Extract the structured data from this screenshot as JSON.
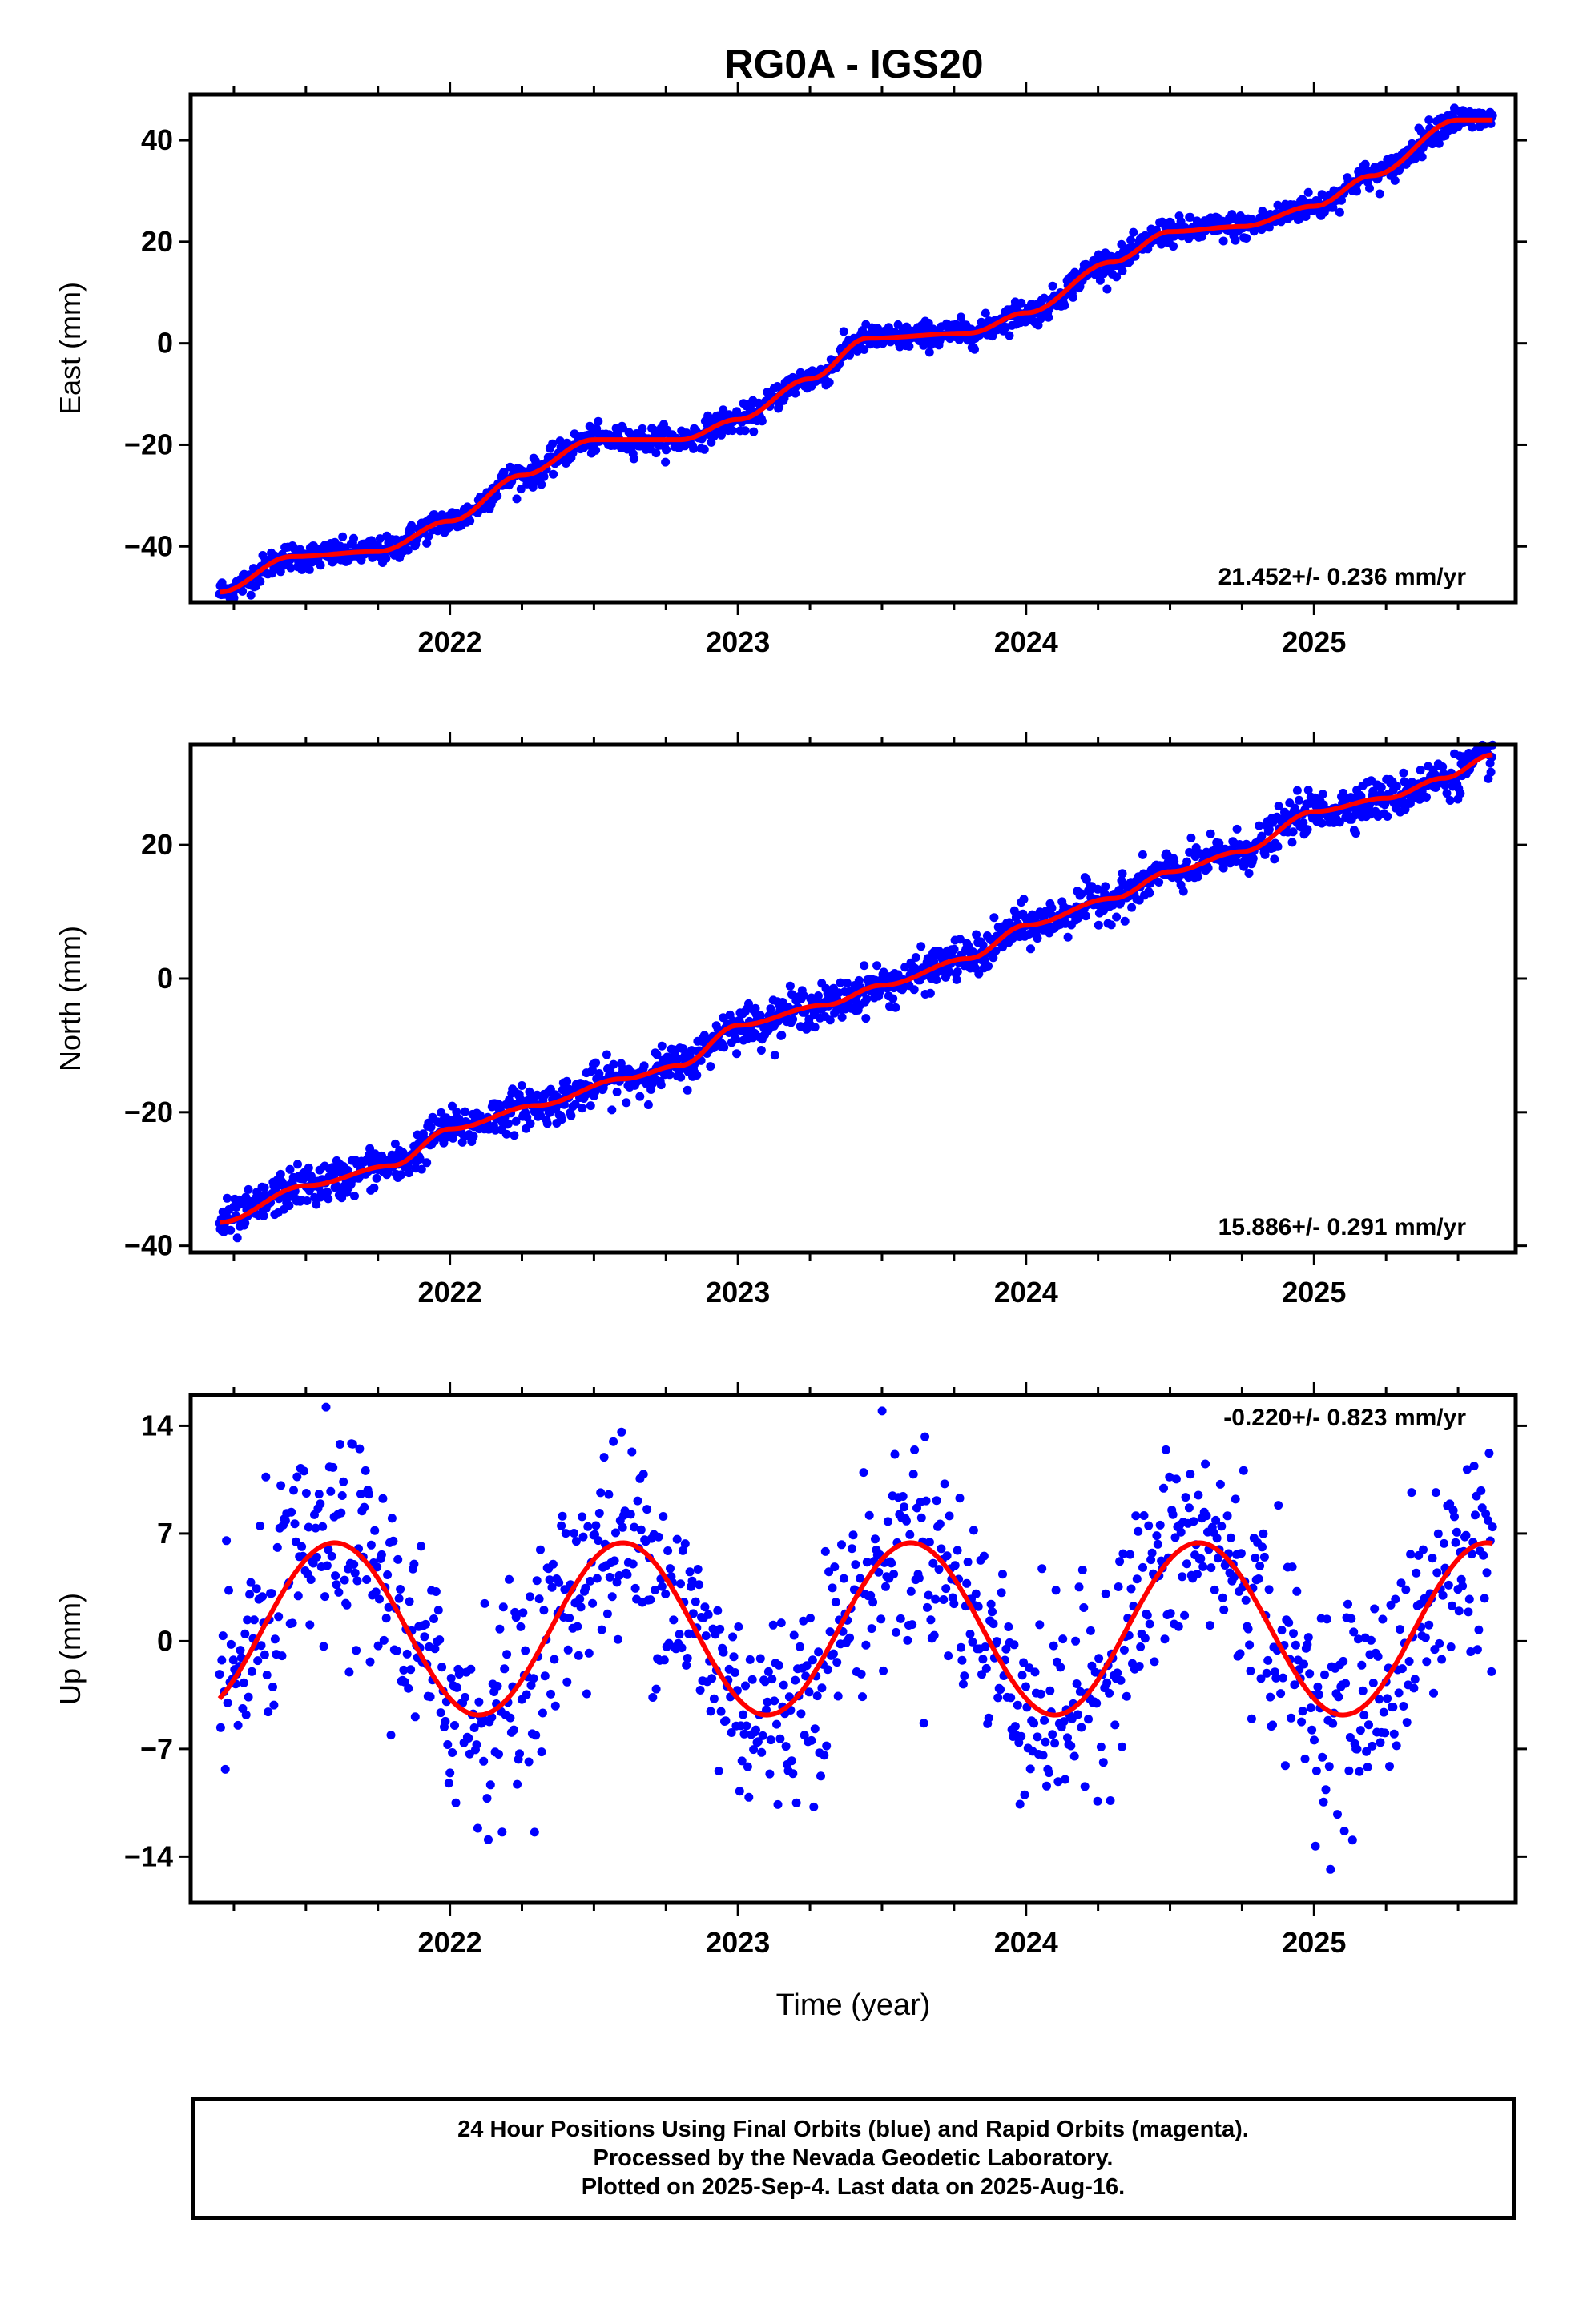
{
  "colors": {
    "points": "#0000ff",
    "fit": "#ff0000",
    "axes": "#000000"
  },
  "footer": {
    "line1": "24 Hour Positions Using Final Orbits (blue) and Rapid Orbits (magenta).",
    "line2": "Processed by the Nevada Geodetic Laboratory.",
    "line3": "Plotted on 2025-Sep-4. Last data on 2025-Aug-16."
  },
  "chart_data": [
    {
      "type": "scatter",
      "title": "RG0A - IGS20",
      "ylabel": "East (mm)",
      "xlabel": "",
      "xlim": [
        2021.1,
        2025.7
      ],
      "ylim": [
        -51,
        49
      ],
      "x_ticks": [
        2022,
        2023,
        2024,
        2025
      ],
      "y_ticks": [
        -40,
        -20,
        0,
        20,
        40
      ],
      "rate_label": "21.452+/- 0.236 mm/yr",
      "series": [
        {
          "role": "daily positions",
          "model": {
            "start": [
              2021.2,
              -49
            ],
            "rate": 21.452,
            "annual": [
              [
                2021.2,
                -49
              ],
              [
                2021.45,
                -42
              ],
              [
                2021.75,
                -41
              ],
              [
                2022.0,
                -35
              ],
              [
                2022.25,
                -26
              ],
              [
                2022.5,
                -19
              ],
              [
                2022.8,
                -19
              ],
              [
                2023.0,
                -15
              ],
              [
                2023.25,
                -7
              ],
              [
                2023.45,
                1
              ],
              [
                2023.8,
                2
              ],
              [
                2024.0,
                6
              ],
              [
                2024.3,
                16
              ],
              [
                2024.5,
                22
              ],
              [
                2024.75,
                23
              ],
              [
                2025.0,
                27
              ],
              [
                2025.2,
                33
              ],
              [
                2025.5,
                44
              ],
              [
                2025.62,
                44
              ]
            ],
            "scatter": 1.3,
            "start_date": 2021.2,
            "end_date": 2025.62
          }
        },
        {
          "role": "model fit",
          "values": [
            [
              2021.2,
              -49
            ],
            [
              2021.45,
              -42
            ],
            [
              2021.75,
              -41
            ],
            [
              2022.0,
              -35
            ],
            [
              2022.25,
              -26
            ],
            [
              2022.5,
              -19
            ],
            [
              2022.8,
              -19
            ],
            [
              2023.0,
              -15
            ],
            [
              2023.25,
              -7
            ],
            [
              2023.45,
              1
            ],
            [
              2023.8,
              2
            ],
            [
              2024.0,
              6
            ],
            [
              2024.3,
              16
            ],
            [
              2024.5,
              22
            ],
            [
              2024.75,
              23
            ],
            [
              2025.0,
              27
            ],
            [
              2025.2,
              33
            ],
            [
              2025.5,
              44
            ],
            [
              2025.62,
              44
            ]
          ]
        }
      ]
    },
    {
      "type": "scatter",
      "title": "",
      "ylabel": "North (mm)",
      "xlabel": "",
      "xlim": [
        2021.1,
        2025.7
      ],
      "ylim": [
        -41,
        35
      ],
      "x_ticks": [
        2022,
        2023,
        2024,
        2025
      ],
      "y_ticks": [
        -40,
        -20,
        0,
        20
      ],
      "rate_label": "15.886+/- 0.291 mm/yr",
      "series": [
        {
          "role": "daily positions",
          "model": {
            "annual": [
              [
                2021.2,
                -36.5
              ],
              [
                2021.5,
                -31
              ],
              [
                2021.8,
                -28
              ],
              [
                2022.0,
                -22.5
              ],
              [
                2022.3,
                -19
              ],
              [
                2022.6,
                -15
              ],
              [
                2022.8,
                -13
              ],
              [
                2023.0,
                -7
              ],
              [
                2023.3,
                -4
              ],
              [
                2023.5,
                -1
              ],
              [
                2023.8,
                3
              ],
              [
                2024.0,
                8
              ],
              [
                2024.3,
                12
              ],
              [
                2024.5,
                16
              ],
              [
                2024.75,
                19
              ],
              [
                2025.0,
                25
              ],
              [
                2025.25,
                27
              ],
              [
                2025.45,
                30
              ],
              [
                2025.62,
                33.5
              ]
            ],
            "scatter": 1.5,
            "start_date": 2021.2,
            "end_date": 2025.62
          }
        },
        {
          "role": "model fit",
          "values": [
            [
              2021.2,
              -36.5
            ],
            [
              2021.5,
              -31
            ],
            [
              2021.8,
              -28
            ],
            [
              2022.0,
              -22.5
            ],
            [
              2022.3,
              -19
            ],
            [
              2022.6,
              -15
            ],
            [
              2022.8,
              -13
            ],
            [
              2023.0,
              -7
            ],
            [
              2023.3,
              -4
            ],
            [
              2023.5,
              -1
            ],
            [
              2023.8,
              3
            ],
            [
              2024.0,
              8
            ],
            [
              2024.3,
              12
            ],
            [
              2024.5,
              16
            ],
            [
              2024.75,
              19
            ],
            [
              2025.0,
              25
            ],
            [
              2025.25,
              27
            ],
            [
              2025.45,
              30
            ],
            [
              2025.62,
              33.5
            ]
          ]
        }
      ]
    },
    {
      "type": "scatter",
      "title": "",
      "ylabel": "Up (mm)",
      "xlabel": "Time (year)",
      "xlim": [
        2021.1,
        2025.7
      ],
      "ylim": [
        -17,
        16
      ],
      "x_ticks": [
        2022,
        2023,
        2024,
        2025
      ],
      "y_ticks": [
        -14,
        -7,
        0,
        7,
        14
      ],
      "rate_label": "-0.220+/- 0.823 mm/yr",
      "series": [
        {
          "role": "daily positions",
          "model": {
            "offset": 0.8,
            "amplitude": 5.6,
            "peak_phase": 0.6,
            "scatter": 3.4,
            "start_date": 2021.2,
            "end_date": 2025.62
          }
        },
        {
          "role": "model fit",
          "model": {
            "offset": 0.8,
            "amplitude": 5.6,
            "peak_phase": 0.6
          }
        }
      ]
    }
  ]
}
